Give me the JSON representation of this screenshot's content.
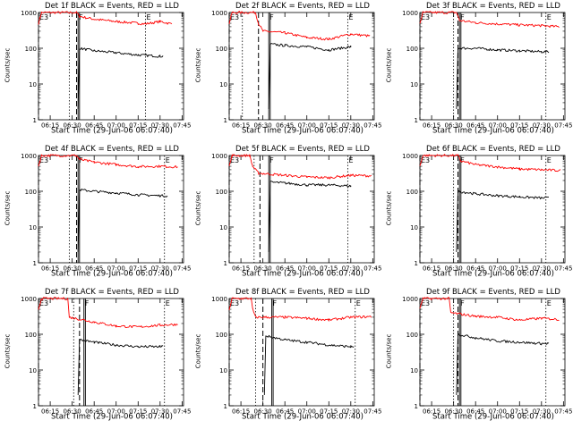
{
  "figure": {
    "background": "#ffffff",
    "event_color": "#000000",
    "lld_color": "#ff0000",
    "marker_color": "#000000"
  },
  "chart_data": [
    {
      "type": "line",
      "title": "Det 1f BLACK = Events, RED = LLD",
      "xlabel": "Start Time (29-Jun-06 06:07:40)",
      "ylabel": "Counts/sec",
      "yscale": "log",
      "ylim": [
        1,
        1000
      ],
      "x_ticks": [
        "06:15",
        "06:30",
        "06:45",
        "07:00",
        "07:15",
        "07:30",
        "07:45"
      ],
      "y_ticks": [
        "1",
        "10",
        "100",
        "1000"
      ],
      "markers": [
        "E3",
        "F",
        "E"
      ],
      "marker_times": [
        "06:07",
        "06:28",
        "06:33",
        "06:34",
        "06:35",
        "07:20"
      ],
      "series": [
        {
          "color": "red",
          "points": [
            [
              "06:07",
              500
            ],
            [
              "06:08",
              700
            ],
            [
              "06:09",
              1000
            ],
            [
              "06:33",
              1000
            ],
            [
              "06:35",
              780
            ],
            [
              "06:45",
              650
            ],
            [
              "07:00",
              560
            ],
            [
              "07:15",
              500
            ],
            [
              "07:20",
              480
            ],
            [
              "07:30",
              560
            ],
            [
              "07:38",
              480
            ]
          ]
        },
        {
          "color": "black",
          "points": [
            [
              "06:34",
              2
            ],
            [
              "06:35",
              100
            ],
            [
              "06:45",
              85
            ],
            [
              "07:00",
              75
            ],
            [
              "07:15",
              65
            ],
            [
              "07:30",
              60
            ],
            [
              "07:32",
              60
            ]
          ]
        }
      ]
    },
    {
      "type": "line",
      "title": "Det 2f BLACK = Events, RED = LLD",
      "xlabel": "Start Time (29-Jun-06 06:07:40)",
      "ylabel": "Counts/sec",
      "yscale": "log",
      "ylim": [
        1,
        1000
      ],
      "x_ticks": [
        "06:15",
        "06:30",
        "06:45",
        "07:00",
        "07:15",
        "07:30",
        "07:45"
      ],
      "y_ticks": [
        "1",
        "10",
        "100",
        "1000"
      ],
      "markers": [
        "E3",
        "F",
        "E"
      ],
      "marker_times": [
        "06:07",
        "06:16",
        "06:27",
        "06:34",
        "06:35",
        "07:28"
      ],
      "series": [
        {
          "color": "red",
          "points": [
            [
              "06:07",
              500
            ],
            [
              "06:09",
              1000
            ],
            [
              "06:25",
              1000
            ],
            [
              "06:27",
              500
            ],
            [
              "06:30",
              300
            ],
            [
              "06:45",
              270
            ],
            [
              "07:00",
              200
            ],
            [
              "07:15",
              180
            ],
            [
              "07:30",
              250
            ],
            [
              "07:43",
              220
            ]
          ]
        },
        {
          "color": "black",
          "points": [
            [
              "06:34",
              2
            ],
            [
              "06:35",
              130
            ],
            [
              "06:45",
              120
            ],
            [
              "07:00",
              110
            ],
            [
              "07:15",
              90
            ],
            [
              "07:30",
              110
            ],
            [
              "07:30",
              110
            ]
          ]
        }
      ]
    },
    {
      "type": "line",
      "title": "Det 3f BLACK = Events, RED = LLD",
      "xlabel": "Start Time (29-Jun-06 06:07:40)",
      "ylabel": "Counts/sec",
      "yscale": "log",
      "ylim": [
        1,
        1000
      ],
      "x_ticks": [
        "06:15",
        "06:30",
        "06:45",
        "07:00",
        "07:15",
        "07:30",
        "07:45"
      ],
      "y_ticks": [
        "1",
        "10",
        "100",
        "1000"
      ],
      "markers": [
        "E3",
        "F",
        "E"
      ],
      "marker_times": [
        "06:07",
        "06:30",
        "06:33",
        "06:34",
        "06:35",
        "07:33"
      ],
      "series": [
        {
          "color": "red",
          "points": [
            [
              "06:07",
              500
            ],
            [
              "06:09",
              1000
            ],
            [
              "06:32",
              1000
            ],
            [
              "06:34",
              600
            ],
            [
              "06:45",
              520
            ],
            [
              "07:00",
              480
            ],
            [
              "07:15",
              450
            ],
            [
              "07:30",
              430
            ],
            [
              "07:42",
              400
            ]
          ]
        },
        {
          "color": "black",
          "points": [
            [
              "06:32",
              2
            ],
            [
              "06:33",
              100
            ],
            [
              "06:45",
              100
            ],
            [
              "07:00",
              90
            ],
            [
              "07:15",
              85
            ],
            [
              "07:30",
              80
            ],
            [
              "07:35",
              80
            ]
          ]
        }
      ]
    },
    {
      "type": "line",
      "title": "Det 4f BLACK = Events, RED = LLD",
      "xlabel": "Start Time (29-Jun-06 06:07:40)",
      "ylabel": "Counts/sec",
      "yscale": "log",
      "ylim": [
        1,
        1000
      ],
      "x_ticks": [
        "06:15",
        "06:30",
        "06:45",
        "07:00",
        "07:15",
        "07:30",
        "07:45"
      ],
      "y_ticks": [
        "1",
        "10",
        "100",
        "1000"
      ],
      "markers": [
        "E3",
        "F",
        "E"
      ],
      "marker_times": [
        "06:07",
        "06:28",
        "06:33",
        "06:34",
        "06:35",
        "07:33"
      ],
      "series": [
        {
          "color": "red",
          "points": [
            [
              "06:07",
              500
            ],
            [
              "06:08",
              700
            ],
            [
              "06:09",
              1000
            ],
            [
              "06:33",
              1000
            ],
            [
              "06:35",
              780
            ],
            [
              "06:45",
              650
            ],
            [
              "07:00",
              560
            ],
            [
              "07:15",
              490
            ],
            [
              "07:30",
              500
            ],
            [
              "07:42",
              480
            ]
          ]
        },
        {
          "color": "black",
          "points": [
            [
              "06:34",
              2
            ],
            [
              "06:35",
              110
            ],
            [
              "06:45",
              100
            ],
            [
              "07:00",
              90
            ],
            [
              "07:15",
              80
            ],
            [
              "07:30",
              75
            ],
            [
              "07:35",
              75
            ]
          ]
        }
      ]
    },
    {
      "type": "line",
      "title": "Det 5f BLACK = Events, RED = LLD",
      "xlabel": "Start Time (29-Jun-06 06:07:40)",
      "ylabel": "Counts/sec",
      "yscale": "log",
      "ylim": [
        1,
        1000
      ],
      "x_ticks": [
        "06:15",
        "06:30",
        "06:45",
        "07:00",
        "07:15",
        "07:30",
        "07:45"
      ],
      "y_ticks": [
        "1",
        "10",
        "100",
        "1000"
      ],
      "markers": [
        "E3",
        "F",
        "E"
      ],
      "marker_times": [
        "06:07",
        "06:24",
        "06:28",
        "06:34",
        "06:35",
        "07:28"
      ],
      "series": [
        {
          "color": "red",
          "points": [
            [
              "06:07",
              500
            ],
            [
              "06:09",
              1000
            ],
            [
              "06:21",
              1000
            ],
            [
              "06:23",
              500
            ],
            [
              "06:27",
              320
            ],
            [
              "06:45",
              280
            ],
            [
              "07:00",
              250
            ],
            [
              "07:15",
              240
            ],
            [
              "07:30",
              280
            ],
            [
              "07:44",
              270
            ]
          ]
        },
        {
          "color": "black",
          "points": [
            [
              "06:34",
              2
            ],
            [
              "06:35",
              180
            ],
            [
              "06:45",
              170
            ],
            [
              "07:00",
              150
            ],
            [
              "07:15",
              150
            ],
            [
              "07:30",
              140
            ],
            [
              "07:30",
              140
            ]
          ]
        }
      ]
    },
    {
      "type": "line",
      "title": "Det 6f BLACK = Events, RED = LLD",
      "xlabel": "Start Time (29-Jun-06 06:07:40)",
      "ylabel": "Counts/sec",
      "yscale": "log",
      "ylim": [
        1,
        1000
      ],
      "x_ticks": [
        "06:15",
        "06:30",
        "06:45",
        "07:00",
        "07:15",
        "07:30",
        "07:45"
      ],
      "y_ticks": [
        "1",
        "10",
        "100",
        "1000"
      ],
      "markers": [
        "E3",
        "F",
        "E"
      ],
      "marker_times": [
        "06:07",
        "06:30",
        "06:33",
        "06:34",
        "06:35",
        "07:33"
      ],
      "series": [
        {
          "color": "red",
          "points": [
            [
              "06:07",
              500
            ],
            [
              "06:09",
              1000
            ],
            [
              "06:33",
              1000
            ],
            [
              "06:35",
              700
            ],
            [
              "06:45",
              560
            ],
            [
              "07:00",
              480
            ],
            [
              "07:15",
              420
            ],
            [
              "07:30",
              400
            ],
            [
              "07:43",
              380
            ]
          ]
        },
        {
          "color": "black",
          "points": [
            [
              "06:32",
              2
            ],
            [
              "06:33",
              100
            ],
            [
              "06:45",
              85
            ],
            [
              "07:00",
              75
            ],
            [
              "07:15",
              70
            ],
            [
              "07:30",
              65
            ],
            [
              "07:35",
              65
            ]
          ]
        }
      ]
    },
    {
      "type": "line",
      "title": "Det 7f BLACK = Events, RED = LLD",
      "xlabel": "Start Time (29-Jun-06 06:07:40)",
      "ylabel": "Counts/sec",
      "yscale": "log",
      "ylim": [
        1,
        1000
      ],
      "x_ticks": [
        "06:15",
        "06:30",
        "06:45",
        "07:00",
        "07:15",
        "07:30",
        "07:45"
      ],
      "y_ticks": [
        "1",
        "10",
        "100",
        "1000"
      ],
      "markers": [
        "E3",
        "F",
        "E"
      ],
      "marker_times": [
        "06:07",
        "06:31",
        "06:35",
        "06:38",
        "06:39",
        "07:33"
      ],
      "series": [
        {
          "color": "red",
          "points": [
            [
              "06:07",
              500
            ],
            [
              "06:09",
              1000
            ],
            [
              "06:27",
              1000
            ],
            [
              "06:28",
              300
            ],
            [
              "06:45",
              220
            ],
            [
              "07:00",
              170
            ],
            [
              "07:15",
              160
            ],
            [
              "07:30",
              180
            ],
            [
              "07:42",
              190
            ]
          ]
        },
        {
          "color": "black",
          "points": [
            [
              "06:34",
              2
            ],
            [
              "06:35",
              70
            ],
            [
              "06:45",
              60
            ],
            [
              "07:00",
              50
            ],
            [
              "07:15",
              45
            ],
            [
              "07:30",
              45
            ],
            [
              "07:32",
              45
            ]
          ]
        }
      ]
    },
    {
      "type": "line",
      "title": "Det 8f BLACK = Events, RED = LLD",
      "xlabel": "Start Time (29-Jun-06 06:07:40)",
      "ylabel": "Counts/sec",
      "yscale": "log",
      "ylim": [
        1,
        1000
      ],
      "x_ticks": [
        "06:15",
        "06:30",
        "06:45",
        "07:00",
        "07:15",
        "07:30",
        "07:45"
      ],
      "y_ticks": [
        "1",
        "10",
        "100",
        "1000"
      ],
      "markers": [
        "E3",
        "F",
        "E"
      ],
      "marker_times": [
        "06:07",
        "06:25",
        "06:30",
        "06:36",
        "06:37",
        "07:33"
      ],
      "series": [
        {
          "color": "red",
          "points": [
            [
              "06:07",
              500
            ],
            [
              "06:09",
              1000
            ],
            [
              "06:22",
              1000
            ],
            [
              "06:23",
              500
            ],
            [
              "06:25",
              300
            ],
            [
              "06:45",
              300
            ],
            [
              "07:00",
              280
            ],
            [
              "07:15",
              250
            ],
            [
              "07:30",
              300
            ],
            [
              "07:44",
              310
            ]
          ]
        },
        {
          "color": "black",
          "points": [
            [
              "06:31",
              2
            ],
            [
              "06:32",
              90
            ],
            [
              "06:45",
              70
            ],
            [
              "07:00",
              60
            ],
            [
              "07:15",
              50
            ],
            [
              "07:30",
              45
            ],
            [
              "07:32",
              45
            ]
          ]
        }
      ]
    },
    {
      "type": "line",
      "title": "Det 9f BLACK = Events, RED = LLD",
      "xlabel": "Start Time (29-Jun-06 06:07:40)",
      "ylabel": "Counts/sec",
      "yscale": "log",
      "ylim": [
        1,
        1000
      ],
      "x_ticks": [
        "06:15",
        "06:30",
        "06:45",
        "07:00",
        "07:15",
        "07:30",
        "07:45"
      ],
      "y_ticks": [
        "1",
        "10",
        "100",
        "1000"
      ],
      "markers": [
        "E3",
        "F",
        "E"
      ],
      "marker_times": [
        "06:07",
        "06:30",
        "06:33",
        "06:34",
        "06:35",
        "07:33"
      ],
      "series": [
        {
          "color": "red",
          "points": [
            [
              "06:07",
              500
            ],
            [
              "06:09",
              1000
            ],
            [
              "06:27",
              1000
            ],
            [
              "06:28",
              400
            ],
            [
              "06:45",
              320
            ],
            [
              "07:00",
              300
            ],
            [
              "07:15",
              250
            ],
            [
              "07:30",
              280
            ],
            [
              "07:42",
              260
            ]
          ]
        },
        {
          "color": "black",
          "points": [
            [
              "06:32",
              2
            ],
            [
              "06:33",
              100
            ],
            [
              "06:45",
              80
            ],
            [
              "07:00",
              65
            ],
            [
              "07:15",
              60
            ],
            [
              "07:30",
              55
            ],
            [
              "07:35",
              55
            ]
          ]
        }
      ]
    }
  ]
}
